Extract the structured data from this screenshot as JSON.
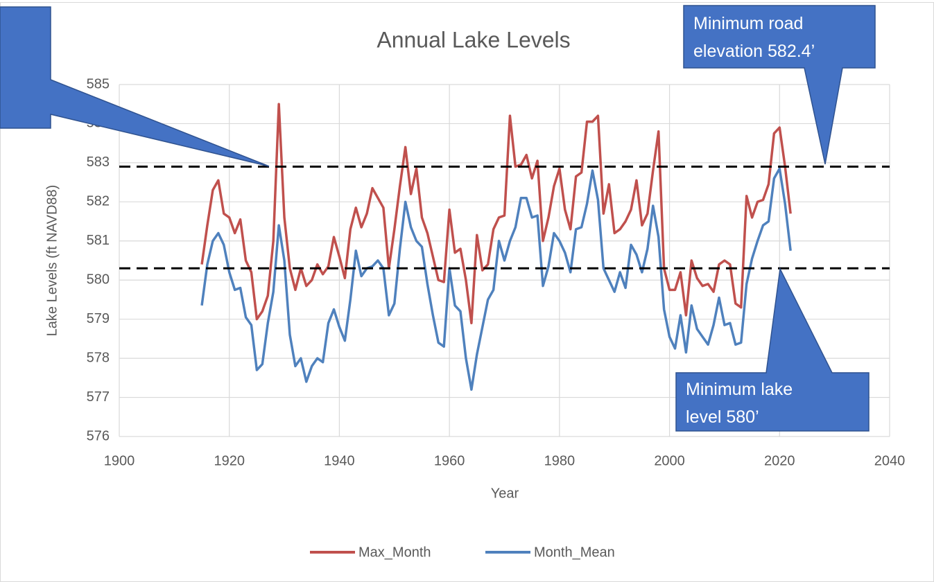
{
  "chart_data": {
    "type": "line",
    "title": "Annual Lake Levels",
    "x_label": "Year",
    "y_label": "Lake Levels (ft NAVD88)",
    "xlim": [
      1900,
      2040
    ],
    "xticks": [
      1900,
      1920,
      1940,
      1960,
      1980,
      2000,
      2020,
      2040
    ],
    "ylim": [
      576,
      585
    ],
    "yticks": [
      576,
      577,
      578,
      579,
      580,
      581,
      582,
      583,
      584,
      585
    ],
    "grid": true,
    "legend": "bottom",
    "x": [
      1915,
      1916,
      1917,
      1918,
      1919,
      1920,
      1921,
      1922,
      1923,
      1924,
      1925,
      1926,
      1927,
      1928,
      1929,
      1930,
      1931,
      1932,
      1933,
      1934,
      1935,
      1936,
      1937,
      1938,
      1939,
      1940,
      1941,
      1942,
      1943,
      1944,
      1945,
      1946,
      1947,
      1948,
      1949,
      1950,
      1951,
      1952,
      1953,
      1954,
      1955,
      1956,
      1957,
      1958,
      1959,
      1960,
      1961,
      1962,
      1963,
      1964,
      1965,
      1966,
      1967,
      1968,
      1969,
      1970,
      1971,
      1972,
      1973,
      1974,
      1975,
      1976,
      1977,
      1978,
      1979,
      1980,
      1981,
      1982,
      1983,
      1984,
      1985,
      1986,
      1987,
      1988,
      1989,
      1990,
      1991,
      1992,
      1993,
      1994,
      1995,
      1996,
      1997,
      1998,
      1999,
      2000,
      2001,
      2002,
      2003,
      2004,
      2005,
      2006,
      2007,
      2008,
      2009,
      2010,
      2011,
      2012,
      2013,
      2014,
      2015,
      2016,
      2017,
      2018,
      2019,
      2020,
      2021,
      2022
    ],
    "series": [
      {
        "name": "Max_Month",
        "color": "#c0504d",
        "values": [
          580.4,
          581.4,
          582.3,
          582.55,
          581.7,
          581.6,
          581.2,
          581.55,
          580.5,
          580.2,
          579.0,
          579.2,
          579.6,
          581.0,
          584.5,
          581.6,
          580.3,
          579.75,
          580.3,
          579.85,
          580.0,
          580.4,
          580.15,
          580.35,
          581.1,
          580.6,
          580.05,
          581.3,
          581.85,
          581.35,
          581.7,
          582.35,
          582.1,
          581.85,
          580.3,
          581.3,
          582.4,
          583.4,
          582.2,
          582.85,
          581.6,
          581.2,
          580.6,
          580.0,
          579.95,
          581.8,
          580.7,
          580.8,
          580.0,
          578.9,
          581.15,
          580.25,
          580.4,
          581.3,
          581.6,
          581.65,
          584.2,
          582.9,
          582.95,
          583.2,
          582.6,
          583.05,
          581.0,
          581.6,
          582.4,
          582.85,
          581.8,
          581.3,
          582.65,
          582.75,
          584.05,
          584.05,
          584.2,
          581.7,
          582.45,
          581.2,
          581.3,
          581.5,
          581.8,
          582.55,
          581.4,
          581.7,
          582.8,
          583.8,
          580.3,
          579.75,
          579.75,
          580.2,
          579.1,
          580.5,
          580.05,
          579.85,
          579.9,
          579.7,
          580.4,
          580.5,
          580.4,
          579.4,
          579.3,
          582.15,
          581.6,
          582.0,
          582.05,
          582.45,
          583.75,
          583.9,
          582.9,
          581.7
        ]
      },
      {
        "name": "Month_Mean",
        "color": "#4f81bd",
        "values": [
          579.35,
          580.4,
          581.0,
          581.2,
          580.9,
          580.2,
          579.75,
          579.8,
          579.05,
          578.85,
          577.7,
          577.85,
          578.9,
          579.7,
          581.4,
          580.5,
          578.6,
          577.8,
          578.0,
          577.4,
          577.8,
          578.0,
          577.9,
          578.9,
          579.25,
          578.8,
          578.45,
          579.5,
          580.75,
          580.1,
          580.3,
          580.35,
          580.5,
          580.3,
          579.1,
          579.4,
          580.8,
          582.0,
          581.35,
          581.0,
          580.85,
          579.9,
          579.1,
          578.4,
          578.3,
          580.3,
          579.35,
          579.2,
          578.0,
          577.2,
          578.1,
          578.8,
          579.5,
          579.75,
          581.0,
          580.5,
          581.0,
          581.35,
          582.1,
          582.1,
          581.6,
          581.65,
          579.85,
          580.35,
          581.2,
          581.0,
          580.7,
          580.2,
          581.3,
          581.35,
          581.95,
          582.8,
          582.05,
          580.3,
          580.0,
          579.7,
          580.2,
          579.8,
          580.9,
          580.65,
          580.2,
          580.8,
          581.9,
          581.1,
          579.25,
          578.55,
          578.25,
          579.1,
          578.15,
          579.35,
          578.75,
          578.55,
          578.35,
          578.85,
          579.55,
          578.85,
          578.9,
          578.35,
          578.4,
          579.9,
          580.55,
          581.0,
          581.4,
          581.5,
          582.6,
          582.85,
          581.95,
          580.75
        ]
      }
    ],
    "reference_lines": [
      582.9,
      580.3
    ],
    "annotations": [
      {
        "lines": [
          "Minimum road",
          "elevation 582.4’"
        ]
      },
      {
        "lines": [
          "Minimum lake",
          "level 580’"
        ]
      }
    ]
  }
}
